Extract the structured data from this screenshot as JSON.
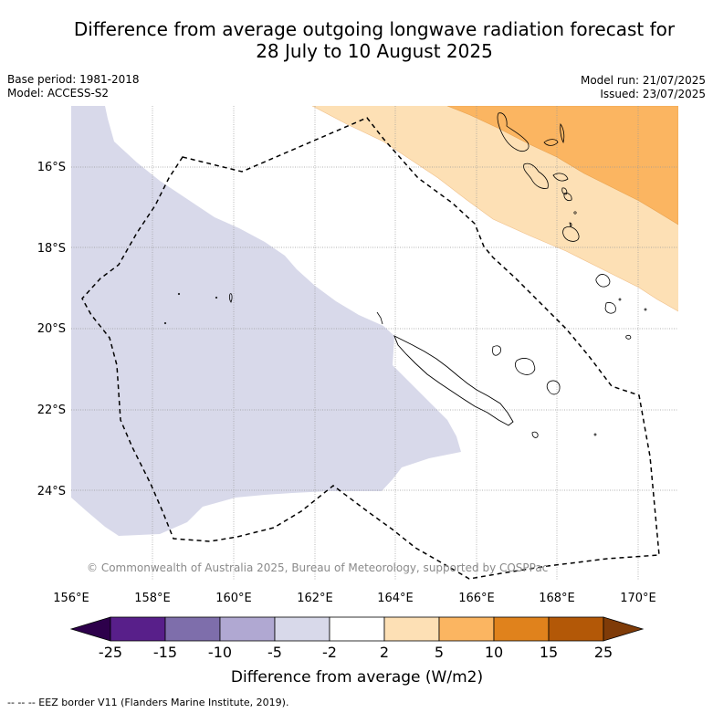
{
  "title_line1": "Difference from average outgoing longwave radiation forecast for",
  "title_line2": "28 July to 10 August 2025",
  "meta_left": [
    "Base period: 1981-2018",
    "Model: ACCESS-S2"
  ],
  "meta_right": [
    "Model run: 21/07/2025",
    "Issued: 23/07/2025"
  ],
  "copyright": "© Commonwealth of Australia 2025, Bureau of Meteorology, supported by COSPPac",
  "x_ticks": [
    "156°E",
    "158°E",
    "160°E",
    "162°E",
    "164°E",
    "166°E",
    "168°E",
    "170°E"
  ],
  "y_ticks": [
    "16°S",
    "18°S",
    "20°S",
    "22°S",
    "24°S"
  ],
  "colorbar": {
    "label": "Difference from average (W/m2)",
    "ticks": [
      "-25",
      "-15",
      "-10",
      "-5",
      "-2",
      "2",
      "5",
      "10",
      "15",
      "25"
    ],
    "colors": [
      "#581f8a",
      "#7e6eab",
      "#b0a8d2",
      "#d8d9ea",
      "#ffffff",
      "#fde0b5",
      "#fbb561",
      "#e0821c",
      "#b35807"
    ],
    "low_extend_color": "#2d004b",
    "high_extend_color": "#7f3b08"
  },
  "footnote": "--  --  -- EEZ border V11 (Flanders Marine Institute, 2019)."
}
